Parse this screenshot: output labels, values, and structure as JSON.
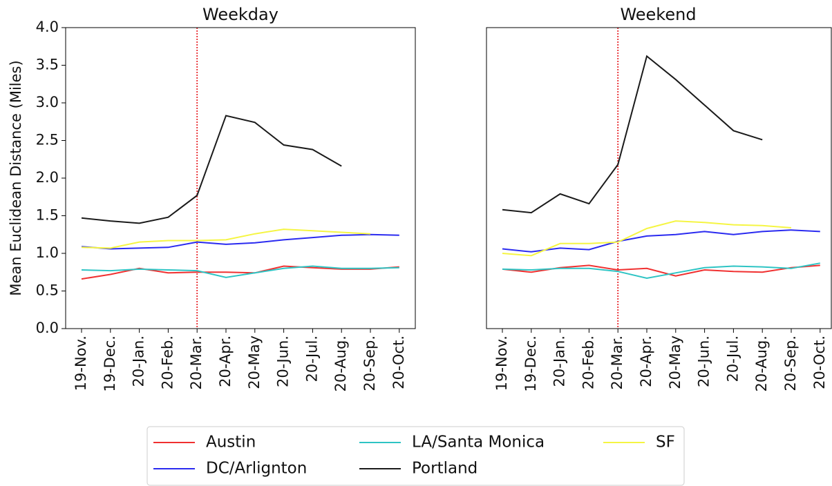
{
  "chart_data": [
    {
      "type": "line",
      "title": "Weekday",
      "y_label": "Mean Euclidean Distance (Miles)",
      "categories": [
        "19-Nov.",
        "19-Dec.",
        "20-Jan.",
        "20-Feb.",
        "20-Mar.",
        "20-Apr.",
        "20-May",
        "20-Jun.",
        "20-Jul.",
        "20-Aug.",
        "20-Sep.",
        "20-Oct."
      ],
      "ylim": [
        0,
        4
      ],
      "yticks": [
        {
          "value": 0,
          "label": "0.0"
        },
        {
          "value": 0.5,
          "label": "0.5"
        },
        {
          "value": 1,
          "label": "1.0"
        },
        {
          "value": 1.5,
          "label": "1.5"
        },
        {
          "value": 2,
          "label": "2.0"
        },
        {
          "value": 2.5,
          "label": "2.5"
        },
        {
          "value": 3,
          "label": "3.0"
        },
        {
          "value": 3.5,
          "label": "3.5"
        },
        {
          "value": 4,
          "label": "4.0"
        }
      ],
      "vline": {
        "category": "20-Mar.",
        "color": "#e8262b"
      },
      "series": [
        {
          "name": "Austin",
          "color": "#f03030",
          "values": [
            0.66,
            0.72,
            0.8,
            0.74,
            0.75,
            0.75,
            0.74,
            0.83,
            0.81,
            0.79,
            0.79,
            0.82
          ]
        },
        {
          "name": "DC/Arlignton",
          "color": "#2a2af0",
          "values": [
            1.09,
            1.06,
            1.07,
            1.08,
            1.15,
            1.12,
            1.14,
            1.18,
            1.21,
            1.24,
            1.25,
            1.24
          ]
        },
        {
          "name": "LA/Santa Monica",
          "color": "#2ec4c4",
          "values": [
            0.78,
            0.77,
            0.79,
            0.78,
            0.77,
            0.68,
            0.74,
            0.8,
            0.83,
            0.8,
            0.8,
            0.81
          ]
        },
        {
          "name": "Portland",
          "color": "#1a1a1a",
          "values": [
            1.47,
            1.43,
            1.4,
            1.48,
            1.77,
            2.83,
            2.74,
            2.44,
            2.38,
            2.16,
            null,
            null
          ]
        },
        {
          "name": "SF",
          "color": "#f5f542",
          "values": [
            1.08,
            1.07,
            1.15,
            1.17,
            1.17,
            1.18,
            1.26,
            1.32,
            1.3,
            1.28,
            1.26,
            null
          ]
        }
      ]
    },
    {
      "type": "line",
      "title": "Weekend",
      "categories": [
        "19-Nov.",
        "19-Dec.",
        "20-Jan.",
        "20-Feb.",
        "20-Mar.",
        "20-Apr.",
        "20-May",
        "20-Jun.",
        "20-Jul.",
        "20-Aug.",
        "20-Sep.",
        "20-Oct."
      ],
      "ylim": [
        0,
        4
      ],
      "vline": {
        "category": "20-Mar.",
        "color": "#e8262b"
      },
      "series": [
        {
          "color": "#f03030",
          "values": [
            0.79,
            0.75,
            0.81,
            0.84,
            0.78,
            0.8,
            0.7,
            0.78,
            0.76,
            0.75,
            0.81,
            0.84
          ]
        },
        {
          "color": "#2a2af0",
          "values": [
            1.06,
            1.02,
            1.07,
            1.05,
            1.16,
            1.23,
            1.25,
            1.29,
            1.25,
            1.29,
            1.31,
            1.29
          ]
        },
        {
          "color": "#2ec4c4",
          "values": [
            0.79,
            0.78,
            0.8,
            0.8,
            0.76,
            0.67,
            0.74,
            0.81,
            0.83,
            0.82,
            0.8,
            0.87
          ]
        },
        {
          "color": "#1a1a1a",
          "values": [
            1.58,
            1.54,
            1.79,
            1.66,
            2.18,
            3.62,
            3.31,
            2.97,
            2.63,
            2.51,
            null,
            null
          ]
        },
        {
          "color": "#f5f542",
          "values": [
            1.0,
            0.97,
            1.13,
            1.13,
            1.15,
            1.33,
            1.43,
            1.41,
            1.38,
            1.37,
            1.34,
            null
          ]
        }
      ]
    }
  ]
}
